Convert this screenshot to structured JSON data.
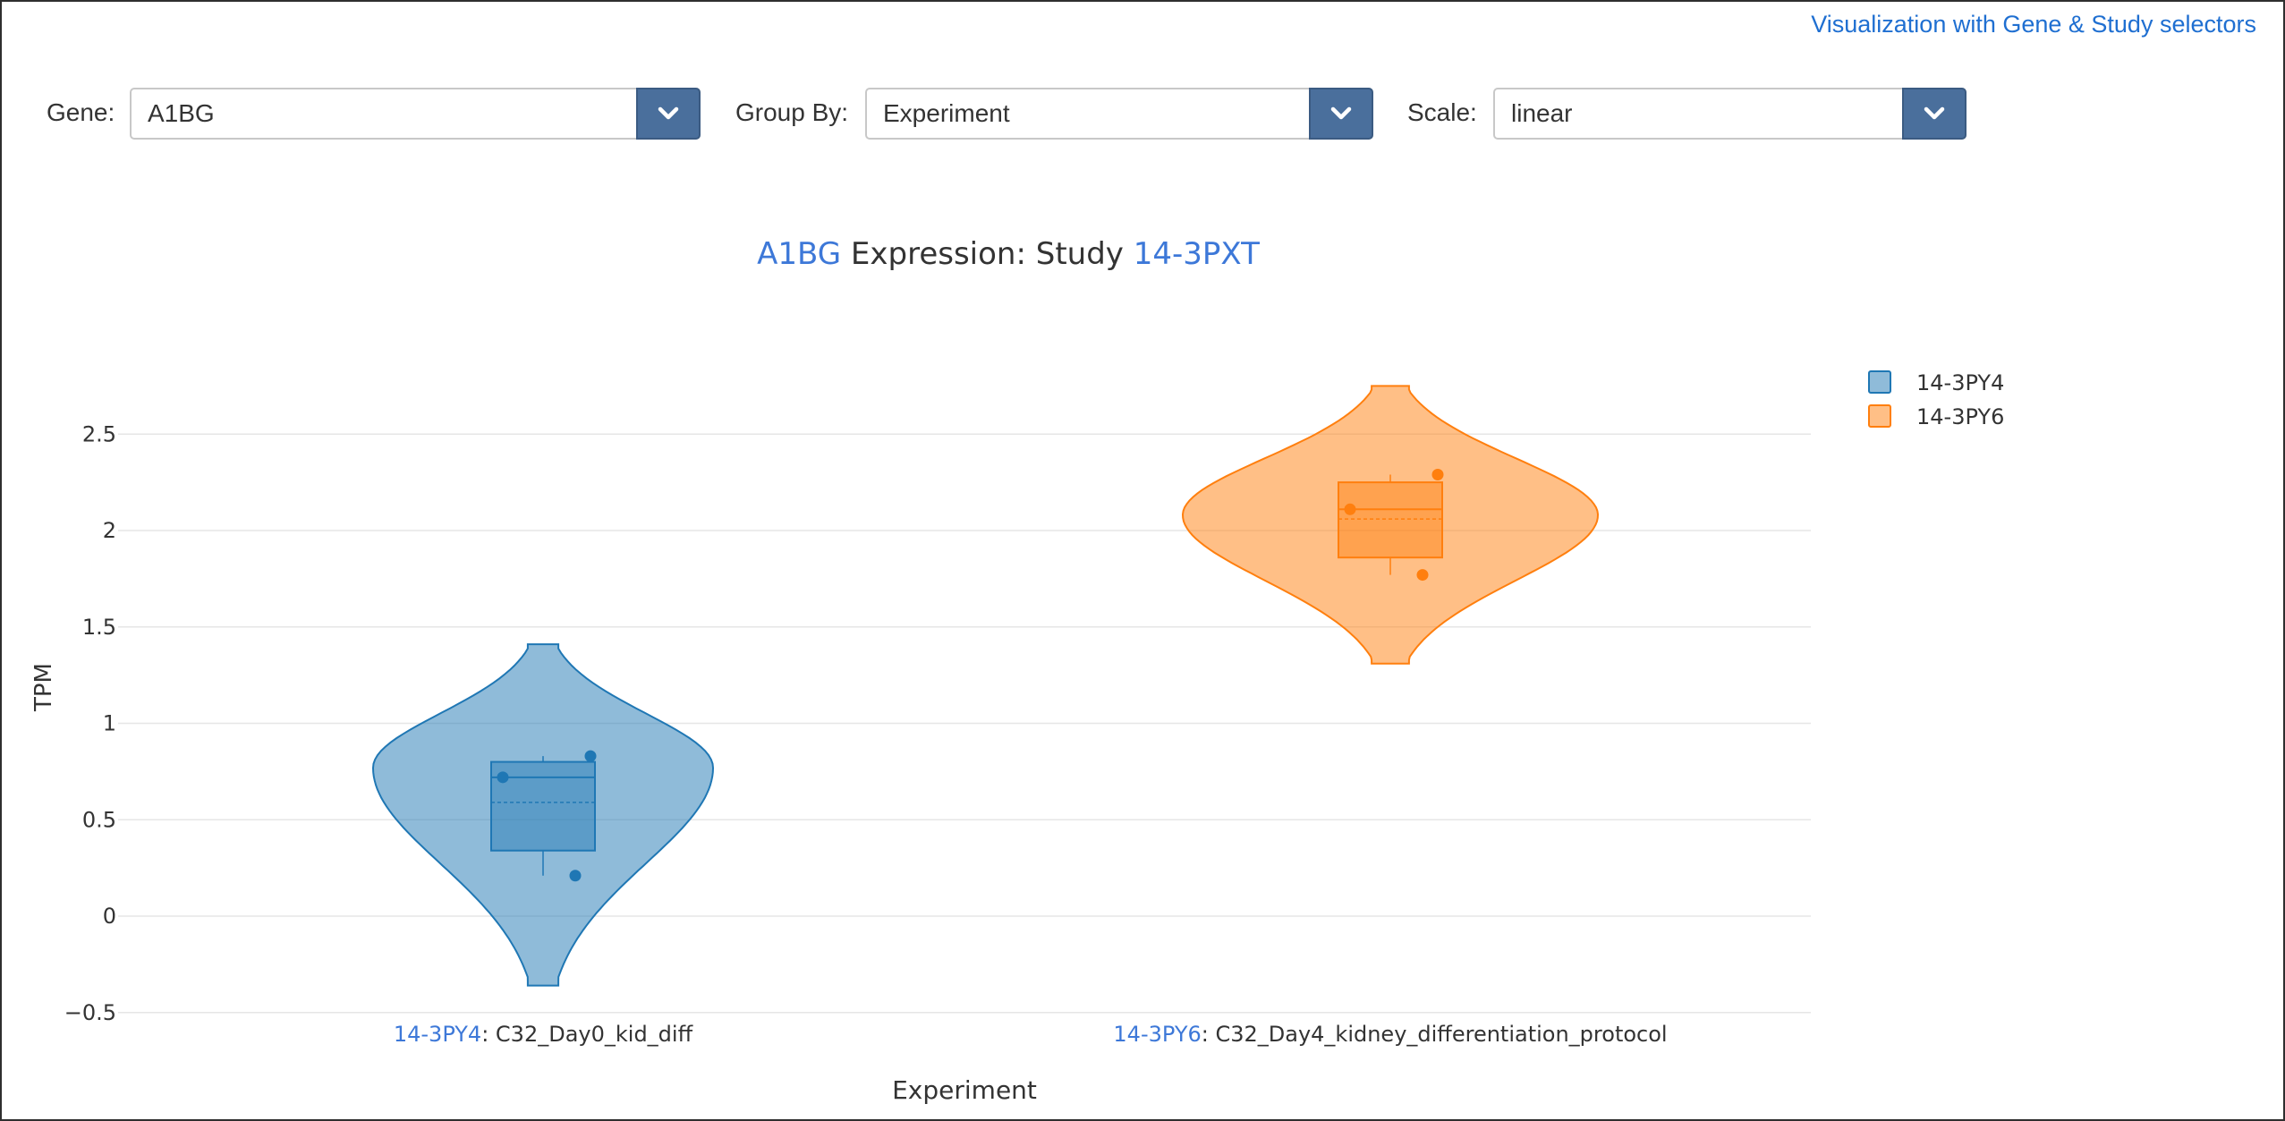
{
  "top_link": "Visualization with Gene & Study selectors",
  "controls": {
    "gene": {
      "label": "Gene:",
      "value": "A1BG"
    },
    "group_by": {
      "label": "Group By:",
      "value": "Experiment"
    },
    "scale": {
      "label": "Scale:",
      "value": "linear"
    }
  },
  "title": {
    "gene": "A1BG",
    "middle": " Expression: Study ",
    "study": "14-3PXT"
  },
  "chart_data": {
    "type": "violin",
    "title": "A1BG Expression: Study 14-3PXT",
    "xlabel": "Experiment",
    "ylabel": "TPM",
    "ylim": [
      -0.5,
      2.5
    ],
    "yticks": [
      "−0.5",
      "0",
      "0.5",
      "1",
      "1.5",
      "2",
      "2.5"
    ],
    "ytick_values": [
      -0.5,
      0,
      0.5,
      1,
      1.5,
      2,
      2.5
    ],
    "grid": true,
    "legend_position": "top-right",
    "series": [
      {
        "name": "14-3PY4",
        "category_id": "14-3PY4",
        "category_label": ": C32_Day0_kid_diff",
        "color": "#1f77b4",
        "points": [
          0.72,
          0.83,
          0.21
        ],
        "box": {
          "q1": 0.34,
          "median": 0.72,
          "mean": 0.59,
          "q3": 0.8,
          "min": 0.21,
          "max": 0.83
        },
        "kde_range": [
          -0.36,
          1.41
        ],
        "peak_value": 0.77
      },
      {
        "name": "14-3PY6",
        "category_id": "14-3PY6",
        "category_label": ": C32_Day4_kidney_differentiation_protocol",
        "color": "#ff7f0e",
        "points": [
          2.11,
          2.29,
          1.77
        ],
        "box": {
          "q1": 1.86,
          "median": 2.11,
          "mean": 2.06,
          "q3": 2.25,
          "min": 1.77,
          "max": 2.29
        },
        "kde_range": [
          1.31,
          2.75
        ],
        "peak_value": 2.08
      }
    ]
  }
}
